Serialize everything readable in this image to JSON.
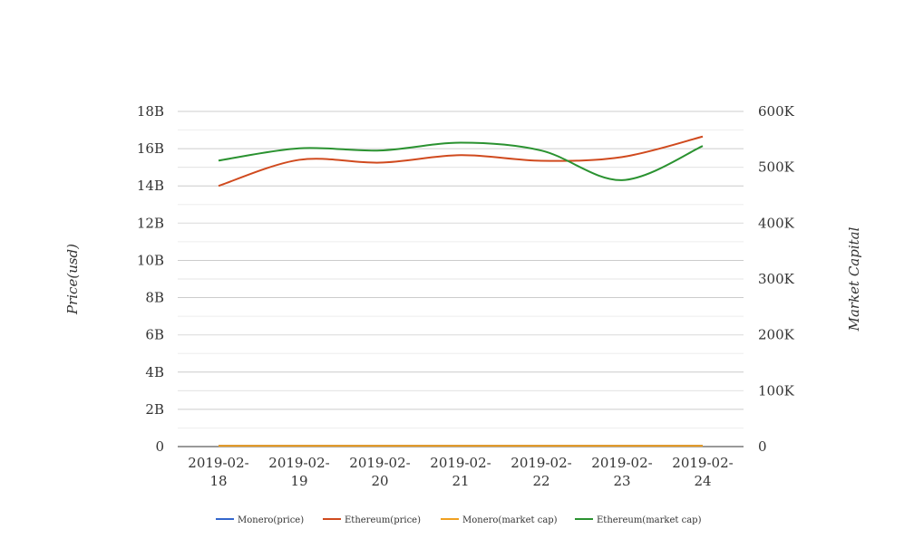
{
  "chart_data": {
    "type": "line",
    "categories": [
      "2019-02-18",
      "2019-02-19",
      "2019-02-20",
      "2019-02-21",
      "2019-02-22",
      "2019-02-23",
      "2019-02-24"
    ],
    "category_lines": [
      [
        "2019-02-",
        "18"
      ],
      [
        "2019-02-",
        "19"
      ],
      [
        "2019-02-",
        "20"
      ],
      [
        "2019-02-",
        "21"
      ],
      [
        "2019-02-",
        "22"
      ],
      [
        "2019-02-",
        "23"
      ],
      [
        "2019-02-",
        "24"
      ]
    ],
    "ylabel_left": "Price(usd)",
    "ylabel_right": "Market Capital",
    "y_left": {
      "min": 0,
      "max": 18000000000,
      "ticks": [
        "0",
        "2B",
        "4B",
        "6B",
        "8B",
        "10B",
        "12B",
        "14B",
        "16B",
        "18B"
      ]
    },
    "y_right": {
      "min": 0,
      "max": 600000,
      "ticks": [
        "0",
        "100K",
        "200K",
        "300K",
        "400K",
        "500K",
        "600K"
      ]
    },
    "grid": true,
    "legend_position": "bottom",
    "series": [
      {
        "name": "Monero(price)",
        "axis": "left",
        "color": "#3366cc",
        "values": [
          50000000,
          50000000,
          50000000,
          50000000,
          50000000,
          50000000,
          50000000
        ]
      },
      {
        "name": "Ethereum(price)",
        "axis": "left",
        "color": "#d04a1e",
        "values": [
          14000000000,
          15400000000,
          15250000000,
          15650000000,
          15350000000,
          15550000000,
          16650000000
        ]
      },
      {
        "name": "Monero(market cap)",
        "axis": "right",
        "color": "#f0a020",
        "values": [
          1500,
          1500,
          1500,
          1500,
          1500,
          1500,
          1500
        ]
      },
      {
        "name": "Ethereum(market cap)",
        "axis": "right",
        "color": "#2a9230",
        "values": [
          512000,
          534000,
          530000,
          544000,
          530000,
          477000,
          538000
        ]
      }
    ]
  }
}
